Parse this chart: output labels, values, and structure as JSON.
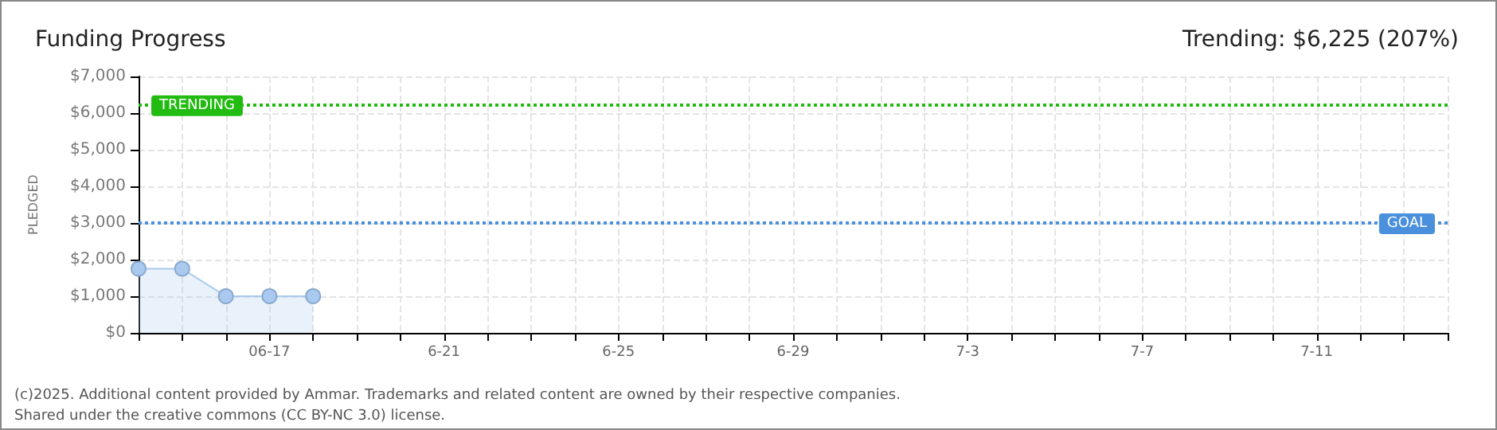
{
  "chart_data": {
    "type": "area",
    "title": "Funding Progress",
    "subtitle": "Trending: $6,225 (207%)",
    "ylabel": "PLEDGED",
    "x": [
      "2025-06-14",
      "2025-06-15",
      "2025-06-16",
      "2025-06-17",
      "2025-06-18"
    ],
    "series": [
      {
        "color": "#a9c9ee",
        "values": [
          1750,
          1750,
          1000,
          1000,
          1000
        ]
      }
    ],
    "xlim": [
      "2025-06-14",
      "2025-07-14"
    ],
    "xticks": [
      {
        "value": "2025-06-14",
        "label": null
      },
      {
        "value": "2025-06-15",
        "label": null
      },
      {
        "value": "2025-06-16",
        "label": null
      },
      {
        "value": "2025-06-17",
        "label": "06-17"
      },
      {
        "value": "2025-06-18",
        "label": null
      },
      {
        "value": "2025-06-19",
        "label": null
      },
      {
        "value": "2025-06-20",
        "label": null
      },
      {
        "value": "2025-06-21",
        "label": "6-21"
      },
      {
        "value": "2025-06-22",
        "label": null
      },
      {
        "value": "2025-06-23",
        "label": null
      },
      {
        "value": "2025-06-24",
        "label": null
      },
      {
        "value": "2025-06-25",
        "label": "6-25"
      },
      {
        "value": "2025-06-26",
        "label": null
      },
      {
        "value": "2025-06-27",
        "label": null
      },
      {
        "value": "2025-06-28",
        "label": null
      },
      {
        "value": "2025-06-29",
        "label": "6-29"
      },
      {
        "value": "2025-06-30",
        "label": null
      },
      {
        "value": "2025-07-01",
        "label": null
      },
      {
        "value": "2025-07-02",
        "label": null
      },
      {
        "value": "2025-07-03",
        "label": "7-3"
      },
      {
        "value": "2025-07-04",
        "label": null
      },
      {
        "value": "2025-07-05",
        "label": null
      },
      {
        "value": "2025-07-06",
        "label": null
      },
      {
        "value": "2025-07-07",
        "label": "7-7"
      },
      {
        "value": "2025-07-08",
        "label": null
      },
      {
        "value": "2025-07-09",
        "label": null
      },
      {
        "value": "2025-07-10",
        "label": null
      },
      {
        "value": "2025-07-11",
        "label": "7-11"
      },
      {
        "value": "2025-07-12",
        "label": null
      },
      {
        "value": "2025-07-13",
        "label": null
      },
      {
        "value": "2025-07-14",
        "label": null
      }
    ],
    "ylim": [
      0,
      7000
    ],
    "yticks": [
      {
        "value": 0,
        "label": "$0"
      },
      {
        "value": 1000,
        "label": "$1,000"
      },
      {
        "value": 2000,
        "label": "$2,000"
      },
      {
        "value": 3000,
        "label": "$3,000"
      },
      {
        "value": 4000,
        "label": "$4,000"
      },
      {
        "value": 5000,
        "label": "$5,000"
      },
      {
        "value": 6000,
        "label": "$6,000"
      },
      {
        "value": 7000,
        "label": "$7,000"
      }
    ],
    "ref_lines": [
      {
        "axis": "y",
        "value": 6225,
        "label": "TRENDING",
        "color": "#22bb11",
        "line_style": "dotted"
      },
      {
        "axis": "y",
        "value": 3000,
        "label": "GOAL",
        "color": "#4a90dc",
        "line_style": "dotted"
      }
    ],
    "grid": true,
    "marker": "circle",
    "line_style": "solid",
    "annotations": [
      "(c)2025. Additional content provided by Ammar. Trademarks and related content are owned by their respective companies.",
      "Shared under the creative commons (CC BY-NC 3.0) license."
    ]
  }
}
